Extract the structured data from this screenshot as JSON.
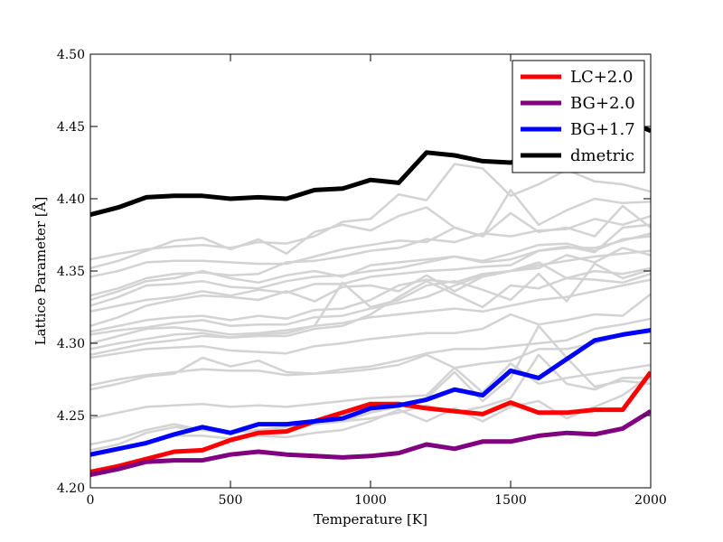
{
  "chart_data": {
    "type": "line",
    "xlabel": "Temperature [K]",
    "ylabel": "Lattice Parameter [Å]",
    "xlim": [
      0,
      2000
    ],
    "ylim": [
      4.2,
      4.5
    ],
    "grid": false,
    "legend_position": "top-right",
    "x": [
      0,
      100,
      200,
      300,
      400,
      500,
      600,
      700,
      800,
      900,
      1000,
      1100,
      1200,
      1300,
      1400,
      1500,
      1600,
      1700,
      1800,
      1900,
      2000
    ],
    "xticks": [
      "0",
      "500",
      "1000",
      "1500",
      "2000"
    ],
    "yticks": [
      "4.20",
      "4.25",
      "4.30",
      "4.35",
      "4.40",
      "4.45",
      "4.50"
    ],
    "series": [
      {
        "name": "LC+2.0",
        "color": "#ff0000",
        "values": [
          4.211,
          4.215,
          4.22,
          4.225,
          4.226,
          4.233,
          4.238,
          4.239,
          4.246,
          4.252,
          4.258,
          4.258,
          4.255,
          4.253,
          4.251,
          4.259,
          4.252,
          4.252,
          4.254,
          4.254,
          4.28
        ]
      },
      {
        "name": "BG+2.0",
        "color": "#800080",
        "values": [
          4.209,
          4.213,
          4.218,
          4.219,
          4.219,
          4.223,
          4.225,
          4.223,
          4.222,
          4.221,
          4.222,
          4.224,
          4.23,
          4.227,
          4.232,
          4.232,
          4.236,
          4.238,
          4.237,
          4.241,
          4.253
        ]
      },
      {
        "name": "BG+1.7",
        "color": "#0000ff",
        "values": [
          4.223,
          4.227,
          4.231,
          4.237,
          4.242,
          4.238,
          4.244,
          4.244,
          4.246,
          4.248,
          4.255,
          4.257,
          4.261,
          4.268,
          4.264,
          4.281,
          4.276,
          4.289,
          4.302,
          4.306,
          4.309
        ]
      },
      {
        "name": "dmetric",
        "color": "#000000",
        "values": [
          4.389,
          4.394,
          4.401,
          4.402,
          4.402,
          4.4,
          4.401,
          4.4,
          4.406,
          4.407,
          4.413,
          4.411,
          4.432,
          4.43,
          4.426,
          4.425,
          4.43,
          4.44,
          4.448,
          4.455,
          4.447
        ]
      }
    ],
    "background_series": {
      "color": "#d3d3d3",
      "lines": [
        [
          4.358,
          4.362,
          4.365,
          4.367,
          4.368,
          4.366,
          4.37,
          4.369,
          4.374,
          4.384,
          4.386,
          4.403,
          4.399,
          4.424,
          4.421,
          4.402,
          4.41,
          4.42,
          4.412,
          4.41,
          4.405
        ],
        [
          4.352,
          4.357,
          4.364,
          4.371,
          4.373,
          4.365,
          4.372,
          4.362,
          4.377,
          4.382,
          4.378,
          4.388,
          4.394,
          4.38,
          4.374,
          4.406,
          4.382,
          4.392,
          4.4,
          4.397,
          4.398
        ],
        [
          4.346,
          4.35,
          4.356,
          4.357,
          4.357,
          4.356,
          4.355,
          4.355,
          4.36,
          4.365,
          4.368,
          4.371,
          4.37,
          4.38,
          4.374,
          4.39,
          4.377,
          4.38,
          4.374,
          4.395,
          4.38
        ],
        [
          4.333,
          4.338,
          4.345,
          4.348,
          4.349,
          4.347,
          4.348,
          4.356,
          4.357,
          4.36,
          4.364,
          4.366,
          4.372,
          4.37,
          4.376,
          4.374,
          4.378,
          4.379,
          4.386,
          4.382,
          4.388
        ],
        [
          4.33,
          4.336,
          4.343,
          4.345,
          4.35,
          4.345,
          4.342,
          4.347,
          4.35,
          4.346,
          4.354,
          4.356,
          4.358,
          4.36,
          4.357,
          4.362,
          4.368,
          4.369,
          4.364,
          4.372,
          4.374
        ],
        [
          4.326,
          4.332,
          4.34,
          4.341,
          4.343,
          4.339,
          4.338,
          4.343,
          4.346,
          4.347,
          4.35,
          4.352,
          4.356,
          4.36,
          4.356,
          4.358,
          4.364,
          4.366,
          4.366,
          4.371,
          4.376
        ],
        [
          4.322,
          4.326,
          4.33,
          4.332,
          4.336,
          4.333,
          4.337,
          4.335,
          4.341,
          4.341,
          4.346,
          4.348,
          4.35,
          4.351,
          4.353,
          4.354,
          4.364,
          4.367,
          4.363,
          4.38,
          4.382
        ],
        [
          4.312,
          4.318,
          4.326,
          4.33,
          4.333,
          4.332,
          4.33,
          4.336,
          4.329,
          4.339,
          4.34,
          4.336,
          4.347,
          4.336,
          4.346,
          4.35,
          4.352,
          4.361,
          4.356,
          4.366,
          4.361
        ],
        [
          4.308,
          4.312,
          4.316,
          4.318,
          4.319,
          4.316,
          4.319,
          4.317,
          4.323,
          4.324,
          4.33,
          4.34,
          4.344,
          4.342,
          4.348,
          4.35,
          4.356,
          4.345,
          4.35,
          4.348,
          4.352
        ],
        [
          4.306,
          4.309,
          4.311,
          4.314,
          4.316,
          4.312,
          4.313,
          4.313,
          4.318,
          4.319,
          4.324,
          4.328,
          4.332,
          4.34,
          4.347,
          4.35,
          4.354,
          4.357,
          4.36,
          4.362,
          4.364
        ],
        [
          4.3,
          4.305,
          4.31,
          4.311,
          4.309,
          4.306,
          4.307,
          4.309,
          4.312,
          4.342,
          4.325,
          4.33,
          4.34,
          4.343,
          4.337,
          4.33,
          4.348,
          4.329,
          4.355,
          4.345,
          4.351
        ],
        [
          4.296,
          4.3,
          4.303,
          4.306,
          4.307,
          4.304,
          4.305,
          4.305,
          4.31,
          4.312,
          4.32,
          4.332,
          4.343,
          4.334,
          4.325,
          4.34,
          4.338,
          4.345,
          4.344,
          4.342,
          4.348
        ],
        [
          4.292,
          4.296,
          4.3,
          4.302,
          4.305,
          4.304,
          4.306,
          4.307,
          4.312,
          4.314,
          4.318,
          4.32,
          4.322,
          4.324,
          4.322,
          4.326,
          4.33,
          4.332,
          4.336,
          4.34,
          4.344
        ],
        [
          4.29,
          4.293,
          4.296,
          4.297,
          4.298,
          4.295,
          4.294,
          4.293,
          4.298,
          4.3,
          4.303,
          4.305,
          4.307,
          4.307,
          4.31,
          4.32,
          4.313,
          4.316,
          4.32,
          4.319,
          4.334
        ],
        [
          4.271,
          4.275,
          4.278,
          4.28,
          4.282,
          4.281,
          4.281,
          4.278,
          4.279,
          4.282,
          4.284,
          4.288,
          4.293,
          4.296,
          4.296,
          4.298,
          4.3,
          4.302,
          4.31,
          4.313,
          4.317
        ],
        [
          4.268,
          4.272,
          4.277,
          4.279,
          4.29,
          4.284,
          4.288,
          4.28,
          4.279,
          4.28,
          4.282,
          4.285,
          4.292,
          4.283,
          4.286,
          4.288,
          4.296,
          4.296,
          4.3,
          4.306,
          4.31
        ],
        [
          4.248,
          4.252,
          4.256,
          4.257,
          4.258,
          4.256,
          4.257,
          4.256,
          4.258,
          4.26,
          4.262,
          4.263,
          4.264,
          4.283,
          4.266,
          4.286,
          4.272,
          4.276,
          4.279,
          4.282,
          4.285
        ],
        [
          4.23,
          4.234,
          4.24,
          4.244,
          4.24,
          4.238,
          4.24,
          4.242,
          4.244,
          4.246,
          4.248,
          4.252,
          4.257,
          4.252,
          4.256,
          4.262,
          4.292,
          4.272,
          4.268,
          4.276,
          4.276
        ],
        [
          4.226,
          4.23,
          4.238,
          4.242,
          4.24,
          4.238,
          4.24,
          4.24,
          4.244,
          4.246,
          4.252,
          4.256,
          4.262,
          4.28,
          4.26,
          4.276,
          4.312,
          4.29,
          4.27,
          4.274,
          4.272
        ],
        [
          4.222,
          4.226,
          4.232,
          4.236,
          4.236,
          4.234,
          4.236,
          4.235,
          4.238,
          4.24,
          4.246,
          4.254,
          4.246,
          4.255,
          4.246,
          4.256,
          4.26,
          4.248,
          4.256,
          4.264,
          4.278
        ]
      ]
    }
  }
}
